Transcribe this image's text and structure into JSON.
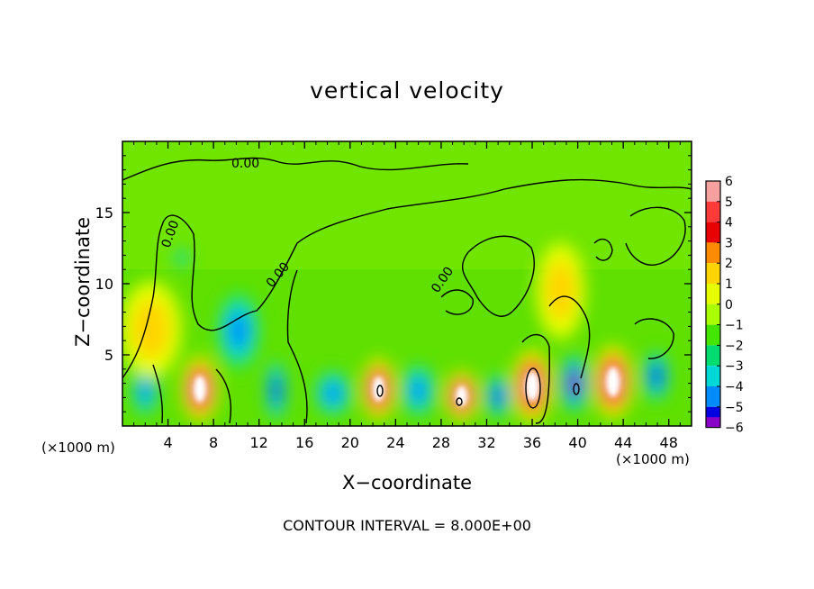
{
  "chart_data": {
    "type": "heatmap",
    "title": "vertical velocity",
    "xlabel": "X−coordinate",
    "ylabel": "Z−coordinate",
    "x_unit_left": "(×1000 m)",
    "x_unit_right": "(×1000 m)",
    "footer": "CONTOUR INTERVAL = 8.000E+00",
    "xlim": [
      0,
      50
    ],
    "ylim": [
      0,
      20
    ],
    "x_ticks": [
      "4",
      "8",
      "12",
      "16",
      "20",
      "24",
      "28",
      "32",
      "36",
      "40",
      "44",
      "48"
    ],
    "y_ticks": [
      "5",
      "10",
      "15"
    ],
    "colorbar": {
      "range": [
        -6,
        6
      ],
      "tick_labels": [
        "6",
        "5",
        "4",
        "3",
        "2",
        "1",
        "0",
        "−1",
        "−2",
        "−3",
        "−4",
        "−5",
        "−6"
      ],
      "colors": [
        "#f7a0a0",
        "#ff3a3a",
        "#e80000",
        "#ff8c00",
        "#ffd400",
        "#e6ff00",
        "#aaff00",
        "#44e600",
        "#00dd70",
        "#00d8d8",
        "#008cff",
        "#0000e0",
        "#8a00c8"
      ]
    },
    "contour_labels": [
      "0.00",
      "0.00",
      "0.00",
      "0.00"
    ],
    "cells": [
      {
        "x": 2.0,
        "z": 2.5,
        "w": -3.5,
        "sx": 0.9,
        "sz": 1.5
      },
      {
        "x": 6.8,
        "z": 2.6,
        "w": 6.0,
        "sx": 1.2,
        "sz": 1.7
      },
      {
        "x": 10.2,
        "z": 6.7,
        "w": -3.8,
        "sx": 1.5,
        "sz": 2.2
      },
      {
        "x": 13.5,
        "z": 2.5,
        "w": -4.5,
        "sx": 0.7,
        "sz": 1.7
      },
      {
        "x": 5.2,
        "z": 11.8,
        "w": -3.0,
        "sx": 0.5,
        "sz": 0.6
      },
      {
        "x": 18.5,
        "z": 2.3,
        "w": -4.0,
        "sx": 1.3,
        "sz": 1.3
      },
      {
        "x": 22.5,
        "z": 2.6,
        "w": 6.0,
        "sx": 1.1,
        "sz": 1.6
      },
      {
        "x": 26.0,
        "z": 2.5,
        "w": -3.8,
        "sx": 1.2,
        "sz": 1.5
      },
      {
        "x": 29.8,
        "z": 2.1,
        "w": 6.0,
        "sx": 1.1,
        "sz": 1.3
      },
      {
        "x": 33.0,
        "z": 2.1,
        "w": -5.0,
        "sx": 0.9,
        "sz": 1.2
      },
      {
        "x": 36.0,
        "z": 2.8,
        "w": 6.0,
        "sx": 1.3,
        "sz": 1.9
      },
      {
        "x": 39.7,
        "z": 3.0,
        "w": -5.5,
        "sx": 1.0,
        "sz": 1.6
      },
      {
        "x": 43.1,
        "z": 3.1,
        "w": 6.0,
        "sx": 1.3,
        "sz": 1.9
      },
      {
        "x": 46.9,
        "z": 3.5,
        "w": -5.0,
        "sx": 0.9,
        "sz": 1.4
      },
      {
        "x": 2.5,
        "z": 6.8,
        "w": 1.8,
        "sx": 2.0,
        "sz": 2.5
      },
      {
        "x": 38.5,
        "z": 9.5,
        "w": 1.5,
        "sx": 1.6,
        "sz": 2.5
      }
    ]
  }
}
